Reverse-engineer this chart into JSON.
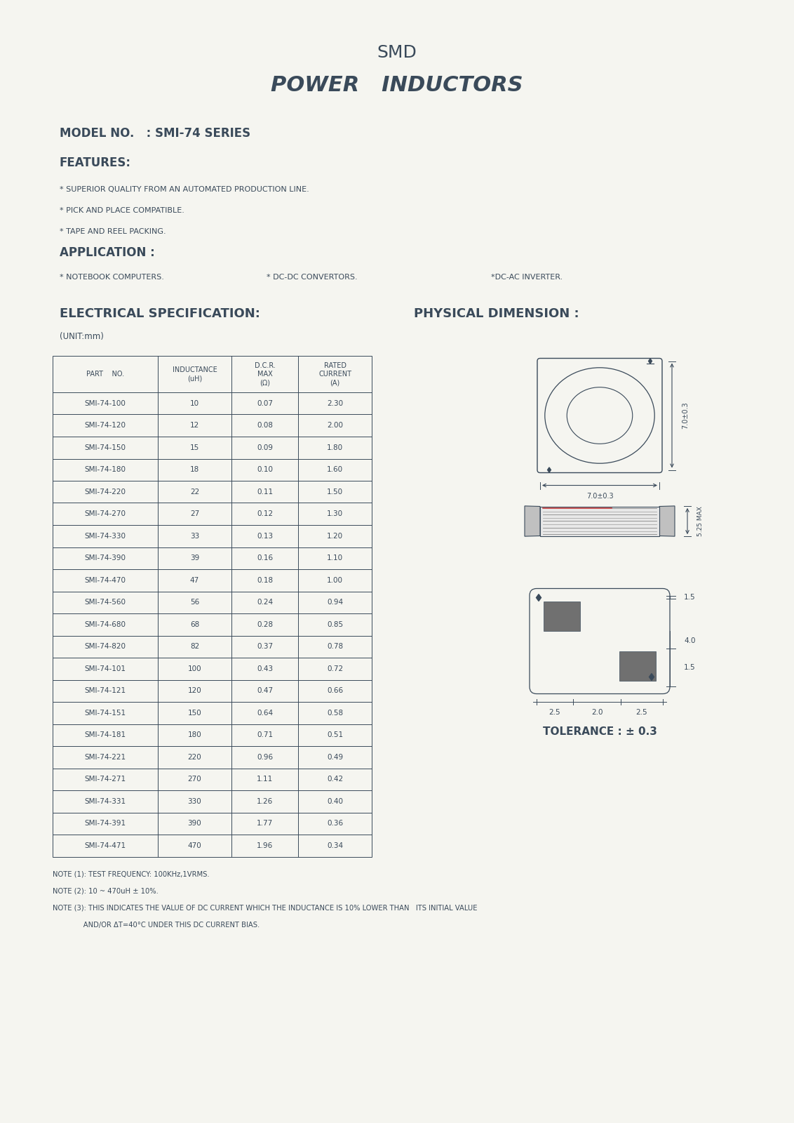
{
  "title_line1": "SMD",
  "title_line2": "POWER   INDUCTORS",
  "model_no": "MODEL NO.   : SMI-74 SERIES",
  "features_label": "FEATURES:",
  "features": [
    "* SUPERIOR QUALITY FROM AN AUTOMATED PRODUCTION LINE.",
    "* PICK AND PLACE COMPATIBLE.",
    "* TAPE AND REEL PACKING."
  ],
  "application_label": "APPLICATION :",
  "applications": [
    "* NOTEBOOK COMPUTERS.",
    "* DC-DC CONVERTORS.",
    "*DC-AC INVERTER."
  ],
  "elec_spec_label": "ELECTRICAL SPECIFICATION:",
  "phys_dim_label": "PHYSICAL DIMENSION :",
  "unit_label": "(UNIT:mm)",
  "table_headers": [
    "PART    NO.",
    "INDUCTANCE\n(uH)",
    "D.C.R.\nMAX\n(Ω)",
    "RATED\nCURRENT\n(A)"
  ],
  "table_data": [
    [
      "SMI-74-100",
      "10",
      "0.07",
      "2.30"
    ],
    [
      "SMI-74-120",
      "12",
      "0.08",
      "2.00"
    ],
    [
      "SMI-74-150",
      "15",
      "0.09",
      "1.80"
    ],
    [
      "SMI-74-180",
      "18",
      "0.10",
      "1.60"
    ],
    [
      "SMI-74-220",
      "22",
      "0.11",
      "1.50"
    ],
    [
      "SMI-74-270",
      "27",
      "0.12",
      "1.30"
    ],
    [
      "SMI-74-330",
      "33",
      "0.13",
      "1.20"
    ],
    [
      "SMI-74-390",
      "39",
      "0.16",
      "1.10"
    ],
    [
      "SMI-74-470",
      "47",
      "0.18",
      "1.00"
    ],
    [
      "SMI-74-560",
      "56",
      "0.24",
      "0.94"
    ],
    [
      "SMI-74-680",
      "68",
      "0.28",
      "0.85"
    ],
    [
      "SMI-74-820",
      "82",
      "0.37",
      "0.78"
    ],
    [
      "SMI-74-101",
      "100",
      "0.43",
      "0.72"
    ],
    [
      "SMI-74-121",
      "120",
      "0.47",
      "0.66"
    ],
    [
      "SMI-74-151",
      "150",
      "0.64",
      "0.58"
    ],
    [
      "SMI-74-181",
      "180",
      "0.71",
      "0.51"
    ],
    [
      "SMI-74-221",
      "220",
      "0.96",
      "0.49"
    ],
    [
      "SMI-74-271",
      "270",
      "1.11",
      "0.42"
    ],
    [
      "SMI-74-331",
      "330",
      "1.26",
      "0.40"
    ],
    [
      "SMI-74-391",
      "390",
      "1.77",
      "0.36"
    ],
    [
      "SMI-74-471",
      "470",
      "1.96",
      "0.34"
    ]
  ],
  "notes": [
    "NOTE (1): TEST FREQUENCY: 100KHz,1VRMS.",
    "NOTE (2): 10 ~ 470uH ± 10%.",
    "NOTE (3): THIS INDICATES THE VALUE OF DC CURRENT WHICH THE INDUCTANCE IS 10% LOWER THAN   ITS INITIAL VALUE",
    "              AND/OR ΔT=40°C UNDER THIS DC CURRENT BIAS."
  ],
  "tolerance_label": "TOLERANCE : ± 0.3",
  "text_color": "#3a4a5a",
  "bg_color": "#f5f5f0",
  "table_line_color": "#3a4a5a"
}
